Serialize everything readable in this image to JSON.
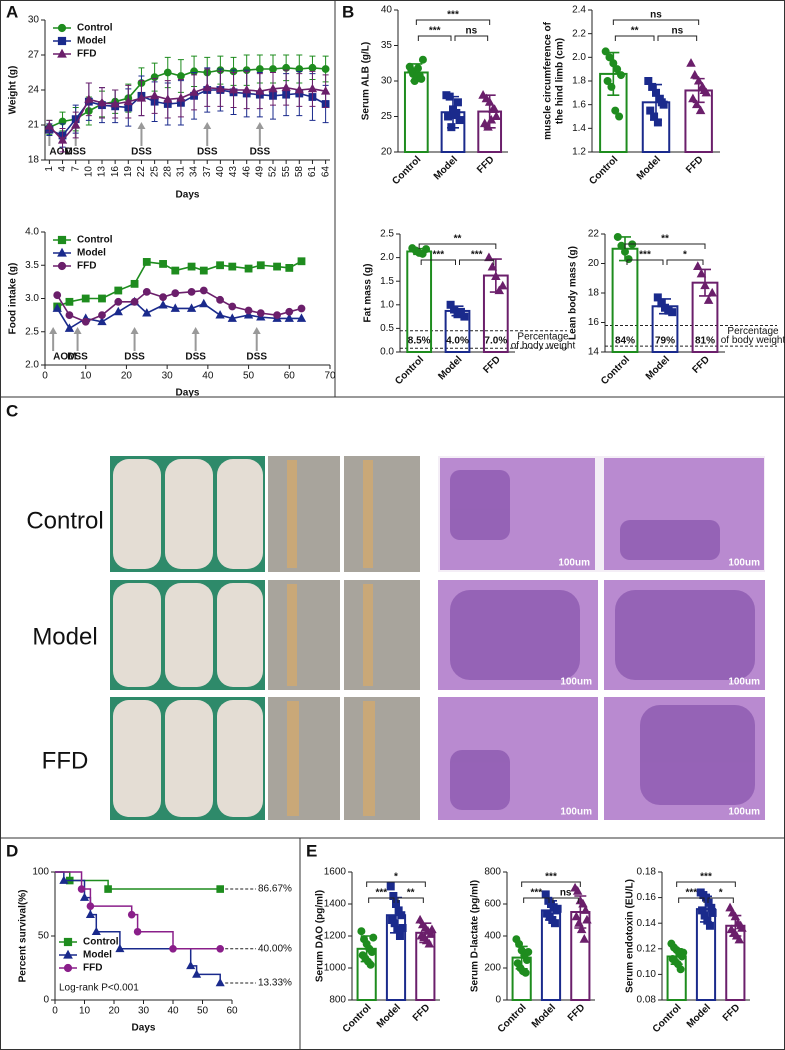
{
  "panel_labels": [
    "A",
    "B",
    "C",
    "D",
    "E"
  ],
  "panel_c": {
    "rows": [
      "Control",
      "Model",
      "FFD"
    ],
    "scale_bars": [
      "100um",
      "100um",
      "100um",
      "100um",
      "100um",
      "100um"
    ]
  },
  "chart_data": [
    {
      "type": "line",
      "ylabel": "Weight (g)",
      "xlabel": "Days",
      "legend": "upper left",
      "x": [
        1,
        4,
        7,
        10,
        13,
        16,
        19,
        22,
        25,
        28,
        31,
        34,
        37,
        40,
        43,
        46,
        49,
        52,
        55,
        58,
        61,
        64
      ],
      "xlim": [
        0,
        65
      ],
      "xticks": [
        1,
        4,
        7,
        10,
        13,
        16,
        19,
        22,
        25,
        28,
        31,
        34,
        37,
        40,
        43,
        46,
        49,
        52,
        55,
        58,
        61,
        64
      ],
      "ylim": [
        18,
        30
      ],
      "yticks": [
        18,
        21,
        24,
        27,
        30
      ],
      "series": [
        {
          "name": "Control",
          "color": "#1e8c1e",
          "marker": "circle",
          "values": [
            20.8,
            21.3,
            21.5,
            22.2,
            22.8,
            23.0,
            23.3,
            24.6,
            25.1,
            25.5,
            25.2,
            25.6,
            25.5,
            25.7,
            25.6,
            25.7,
            25.8,
            25.8,
            25.9,
            25.8,
            25.9,
            25.8
          ],
          "errors": [
            0.6,
            0.8,
            1.0,
            1.2,
            1.1,
            1.0,
            1.2,
            1.3,
            1.2,
            1.3,
            1.4,
            1.3,
            1.3,
            1.2,
            1.2,
            1.3,
            1.2,
            1.2,
            1.1,
            1.2,
            1.0,
            1.1
          ]
        },
        {
          "name": "Model",
          "color": "#1a2a8c",
          "marker": "square",
          "values": [
            20.6,
            20.1,
            21.5,
            23.0,
            22.7,
            22.6,
            22.5,
            23.5,
            23.0,
            22.8,
            22.9,
            23.5,
            24.0,
            24.0,
            23.8,
            23.7,
            23.6,
            23.5,
            23.6,
            23.7,
            23.4,
            22.8
          ],
          "errors": [
            0.5,
            1.0,
            1.2,
            1.6,
            1.5,
            1.4,
            1.6,
            1.7,
            1.7,
            1.8,
            1.9,
            2.0,
            1.9,
            1.8,
            1.9,
            2.0,
            1.9,
            2.0,
            1.8,
            1.9,
            2.0,
            1.6
          ]
        },
        {
          "name": "FFD",
          "color": "#6b1f6b",
          "marker": "triangle",
          "values": [
            20.9,
            19.7,
            21.0,
            23.2,
            22.9,
            22.8,
            23.0,
            23.3,
            23.5,
            23.2,
            23.3,
            23.8,
            24.2,
            24.1,
            24.0,
            24.0,
            23.9,
            24.1,
            24.2,
            24.0,
            24.1,
            23.9
          ],
          "errors": [
            0.5,
            1.0,
            1.1,
            1.4,
            1.3,
            1.2,
            1.4,
            1.5,
            1.5,
            1.6,
            1.6,
            1.5,
            1.6,
            1.5,
            1.5,
            1.6,
            1.5,
            1.4,
            1.5,
            1.4,
            1.5,
            1.4
          ]
        }
      ],
      "annotations": [
        {
          "text": "AOM",
          "x": 1
        },
        {
          "text": "DSS",
          "x": 7
        },
        {
          "text": "DSS",
          "x": 22
        },
        {
          "text": "DSS",
          "x": 37
        },
        {
          "text": "DSS",
          "x": 49
        }
      ]
    },
    {
      "type": "line",
      "ylabel": "Food intake (g)",
      "xlabel": "Days",
      "legend": "upper left",
      "x": [
        3,
        6,
        10,
        14,
        18,
        22,
        25,
        29,
        32,
        36,
        39,
        43,
        46,
        50,
        53,
        57,
        60,
        63
      ],
      "xlim": [
        0,
        70
      ],
      "xticks": [
        0,
        10,
        20,
        30,
        40,
        50,
        60,
        70
      ],
      "ylim": [
        2,
        4
      ],
      "yticks": [
        {
          "value": 2,
          "label": "2.0"
        },
        2.5,
        {
          "value": 3,
          "label": "3.0"
        },
        3.5,
        {
          "value": 4,
          "label": "4.0"
        }
      ],
      "series": [
        {
          "name": "Control",
          "color": "#1e8c1e",
          "marker": "square",
          "values": [
            2.88,
            2.95,
            3.0,
            3.0,
            3.12,
            3.22,
            3.55,
            3.52,
            3.42,
            3.48,
            3.42,
            3.5,
            3.48,
            3.45,
            3.5,
            3.48,
            3.46,
            3.56
          ]
        },
        {
          "name": "Model",
          "color": "#1a2a8c",
          "marker": "triangle",
          "values": [
            2.85,
            2.55,
            2.7,
            2.65,
            2.8,
            2.95,
            2.78,
            2.9,
            2.85,
            2.85,
            2.92,
            2.75,
            2.7,
            2.75,
            2.72,
            2.7,
            2.7,
            2.7
          ]
        },
        {
          "name": "FFD",
          "color": "#6b1f6b",
          "marker": "circle",
          "values": [
            3.05,
            2.75,
            2.65,
            2.75,
            2.95,
            2.95,
            3.1,
            3.02,
            3.08,
            3.1,
            3.12,
            2.98,
            2.88,
            2.82,
            2.78,
            2.75,
            2.8,
            2.85
          ]
        }
      ],
      "annotations": [
        {
          "text": "AOM",
          "x": 2
        },
        {
          "text": "DSS",
          "x": 8
        },
        {
          "text": "DSS",
          "x": 22
        },
        {
          "text": "DSS",
          "x": 37
        },
        {
          "text": "DSS",
          "x": 52
        }
      ]
    },
    {
      "type": "dotbar",
      "ylabel": "Serum ALB (g/L)",
      "categories": [
        "Control",
        "Model",
        "FFD"
      ],
      "colors": [
        "#1e8c1e",
        "#1a2a8c",
        "#6b1f6b"
      ],
      "markers": [
        "circle",
        "square",
        "triangle"
      ],
      "ylim": [
        20,
        40
      ],
      "yticks": [
        20,
        25,
        30,
        35,
        40
      ],
      "values": [
        31.2,
        25.6,
        25.7
      ],
      "errors": [
        1.2,
        2.2,
        2.3
      ],
      "points": [
        [
          32,
          31,
          30.5,
          30.8,
          33,
          31.5,
          30,
          31.8,
          30.3
        ],
        [
          28,
          27.8,
          26,
          25.5,
          24.5,
          25,
          23.5,
          25.2,
          27
        ],
        [
          28,
          27.5,
          27,
          26,
          25,
          24,
          23.5,
          24.5,
          26
        ]
      ],
      "brackets": [
        {
          "from": "Control",
          "to": "FFD",
          "label": "***"
        },
        {
          "from": "Control",
          "to": "Model",
          "label": "***"
        },
        {
          "from": "Model",
          "to": "FFD",
          "label": "ns"
        }
      ]
    },
    {
      "type": "dotbar",
      "ylabel": [
        "muscle circumference of",
        "the hind limb (cm)"
      ],
      "categories": [
        "Control",
        "Model",
        "FFD"
      ],
      "colors": [
        "#1e8c1e",
        "#1a2a8c",
        "#6b1f6b"
      ],
      "markers": [
        "circle",
        "square",
        "triangle"
      ],
      "ylim": [
        1.2,
        2.4
      ],
      "yticks": [
        1.2,
        1.4,
        1.6,
        1.8,
        {
          "value": 2,
          "label": "2.0"
        },
        2.2,
        2.4
      ],
      "values": [
        1.86,
        1.62,
        1.72
      ],
      "errors": [
        0.18,
        0.15,
        0.1
      ],
      "points": [
        [
          2.05,
          2.0,
          1.95,
          1.9,
          1.85,
          1.8,
          1.75,
          1.55,
          1.5
        ],
        [
          1.8,
          1.75,
          1.7,
          1.65,
          1.6,
          1.55,
          1.5,
          1.45,
          1.62
        ],
        [
          1.95,
          1.85,
          1.8,
          1.75,
          1.7,
          1.65,
          1.6,
          1.55,
          1.72
        ]
      ],
      "brackets": [
        {
          "from": "Control",
          "to": "FFD",
          "label": "ns"
        },
        {
          "from": "Control",
          "to": "Model",
          "label": "**"
        },
        {
          "from": "Model",
          "to": "FFD",
          "label": "ns"
        }
      ]
    },
    {
      "type": "dotbar",
      "ylabel": "Fat mass (g)",
      "categories": [
        "Control",
        "Model",
        "FFD"
      ],
      "colors": [
        "#1e8c1e",
        "#1a2a8c",
        "#6b1f6b"
      ],
      "markers": [
        "circle",
        "square",
        "triangle"
      ],
      "ylim": [
        0,
        2.5
      ],
      "yticks": [
        {
          "value": 0,
          "label": "0.0"
        },
        0.5,
        {
          "value": 1,
          "label": "1.0"
        },
        1.5,
        {
          "value": 2,
          "label": "2.0"
        },
        2.5
      ],
      "values": [
        2.13,
        0.87,
        1.62
      ],
      "errors": [
        0.06,
        0.1,
        0.35
      ],
      "points": [
        [
          2.2,
          2.15,
          2.1,
          2.08,
          2.18
        ],
        [
          1.0,
          0.9,
          0.8,
          0.85,
          0.75
        ],
        [
          2.0,
          1.8,
          1.6,
          1.3,
          1.4
        ]
      ],
      "percentages": [
        "8.5%",
        "4.0%",
        "7.0%"
      ],
      "ref_lines": [
        0.45,
        0.08
      ],
      "note": [
        "Percentage",
        "of body weight"
      ],
      "brackets": [
        {
          "from": "Control",
          "to": "FFD",
          "label": "**"
        },
        {
          "from": "Control",
          "to": "Model",
          "label": "***"
        },
        {
          "from": "Model",
          "to": "FFD",
          "label": "***"
        }
      ]
    },
    {
      "type": "dotbar",
      "ylabel": "Lean body mass (g)",
      "categories": [
        "Control",
        "Model",
        "FFD"
      ],
      "colors": [
        "#1e8c1e",
        "#1a2a8c",
        "#6b1f6b"
      ],
      "markers": [
        "circle",
        "square",
        "triangle"
      ],
      "ylim": [
        14,
        22
      ],
      "yticks": [
        14,
        16,
        18,
        20,
        22
      ],
      "values": [
        21.0,
        17.1,
        18.7
      ],
      "errors": [
        0.8,
        0.5,
        0.9
      ],
      "points": [
        [
          21.8,
          21.2,
          20.8,
          20.3,
          21.3
        ],
        [
          17.7,
          17.3,
          17.0,
          16.8,
          16.7
        ],
        [
          19.8,
          19.3,
          18.5,
          17.5,
          18.0
        ]
      ],
      "percentages": [
        "84%",
        "79%",
        "81%"
      ],
      "ref_lines": [
        15.8,
        14.4
      ],
      "note": [
        "Percentage",
        "of body weight"
      ],
      "brackets": [
        {
          "from": "Control",
          "to": "FFD",
          "label": "**"
        },
        {
          "from": "Control",
          "to": "Model",
          "label": "***"
        },
        {
          "from": "Model",
          "to": "FFD",
          "label": "*"
        }
      ]
    },
    {
      "type": "step",
      "ylabel": "Percent survival(%)",
      "xlabel": "Days",
      "legend": "lower left",
      "annotation": "Log-rank P<0.001",
      "xlim": [
        0,
        60
      ],
      "xticks": [
        0,
        10,
        20,
        30,
        40,
        50,
        60
      ],
      "ylim": [
        0,
        100
      ],
      "yticks": [
        0,
        50,
        100
      ],
      "series": [
        {
          "name": "Control",
          "color": "#1e8c1e",
          "marker": "square",
          "x": [
            0,
            5,
            18,
            56
          ],
          "values": [
            100,
            93.33,
            86.67,
            86.67
          ],
          "end_label": "86.67%"
        },
        {
          "name": "Model",
          "color": "#1a2a8c",
          "marker": "triangle",
          "x": [
            0,
            3,
            10,
            12,
            14,
            22,
            46,
            48,
            56
          ],
          "values": [
            100,
            93.33,
            80,
            66.67,
            53.33,
            40,
            26.67,
            20,
            13.33
          ],
          "end_label": "13.33%"
        },
        {
          "name": "FFD",
          "color": "#8a1f8a",
          "marker": "circle",
          "x": [
            0,
            9,
            12,
            26,
            28,
            40,
            56
          ],
          "values": [
            100,
            86.67,
            73.33,
            66.67,
            53.33,
            40,
            40
          ],
          "end_label": "40.00%"
        }
      ]
    },
    {
      "type": "dotbar",
      "ylabel": "Serum DAO (pg/ml)",
      "categories": [
        "Control",
        "Model",
        "FFD"
      ],
      "colors": [
        "#1e8c1e",
        "#1a2a8c",
        "#6b1f6b"
      ],
      "markers": [
        "circle",
        "square",
        "triangle"
      ],
      "ylim": [
        800,
        1600
      ],
      "yticks": [
        800,
        1000,
        1200,
        1400,
        1600
      ],
      "values": [
        1120,
        1330,
        1220
      ],
      "errors": [
        80,
        110,
        60
      ],
      "points": [
        [
          1230,
          1180,
          1150,
          1120,
          1100,
          1080,
          1060,
          1040,
          1020,
          1190
        ],
        [
          1510,
          1450,
          1400,
          1360,
          1330,
          1300,
          1280,
          1240,
          1200,
          1250
        ],
        [
          1300,
          1270,
          1250,
          1230,
          1210,
          1200,
          1190,
          1170,
          1150,
          1240
        ]
      ],
      "brackets": [
        {
          "from": "Control",
          "to": "FFD",
          "label": "*"
        },
        {
          "from": "Control",
          "to": "Model",
          "label": "***"
        },
        {
          "from": "Model",
          "to": "FFD",
          "label": "**"
        }
      ]
    },
    {
      "type": "dotbar",
      "ylabel": "Serum D-lactate (pg/ml)",
      "categories": [
        "Control",
        "Model",
        "FFD"
      ],
      "colors": [
        "#1e8c1e",
        "#1a2a8c",
        "#6b1f6b"
      ],
      "markers": [
        "circle",
        "square",
        "triangle"
      ],
      "ylim": [
        0,
        800
      ],
      "yticks": [
        0,
        200,
        400,
        600,
        800
      ],
      "values": [
        265,
        560,
        550
      ],
      "errors": [
        70,
        60,
        100
      ],
      "points": [
        [
          380,
          350,
          310,
          280,
          250,
          230,
          200,
          180,
          170,
          300
        ],
        [
          660,
          620,
          600,
          580,
          560,
          540,
          520,
          500,
          480,
          570
        ],
        [
          700,
          680,
          620,
          600,
          560,
          520,
          480,
          440,
          380,
          500
        ]
      ],
      "brackets": [
        {
          "from": "Control",
          "to": "FFD",
          "label": "***"
        },
        {
          "from": "Control",
          "to": "Model",
          "label": "***"
        },
        {
          "from": "Model",
          "to": "FFD",
          "label": "ns"
        }
      ]
    },
    {
      "type": "dotbar",
      "ylabel": "Serum endotoxin (EU/L)",
      "categories": [
        "Control",
        "Model",
        "FFD"
      ],
      "colors": [
        "#1e8c1e",
        "#1a2a8c",
        "#6b1f6b"
      ],
      "markers": [
        "circle",
        "square",
        "triangle"
      ],
      "ylim": [
        0.08,
        0.18
      ],
      "yticks": [
        0.08,
        {
          "value": 0.1,
          "label": "0.10"
        },
        0.12,
        0.14,
        0.16,
        0.18
      ],
      "values": [
        0.114,
        0.151,
        0.138
      ],
      "errors": [
        0.006,
        0.01,
        0.008
      ],
      "points": [
        [
          0.124,
          0.121,
          0.119,
          0.116,
          0.114,
          0.112,
          0.11,
          0.108,
          0.104,
          0.117
        ],
        [
          0.164,
          0.162,
          0.16,
          0.156,
          0.152,
          0.15,
          0.146,
          0.142,
          0.138,
          0.148
        ],
        [
          0.152,
          0.148,
          0.145,
          0.14,
          0.138,
          0.135,
          0.132,
          0.13,
          0.127,
          0.136
        ]
      ],
      "brackets": [
        {
          "from": "Control",
          "to": "FFD",
          "label": "***"
        },
        {
          "from": "Control",
          "to": "Model",
          "label": "***"
        },
        {
          "from": "Model",
          "to": "FFD",
          "label": "*"
        }
      ]
    }
  ]
}
